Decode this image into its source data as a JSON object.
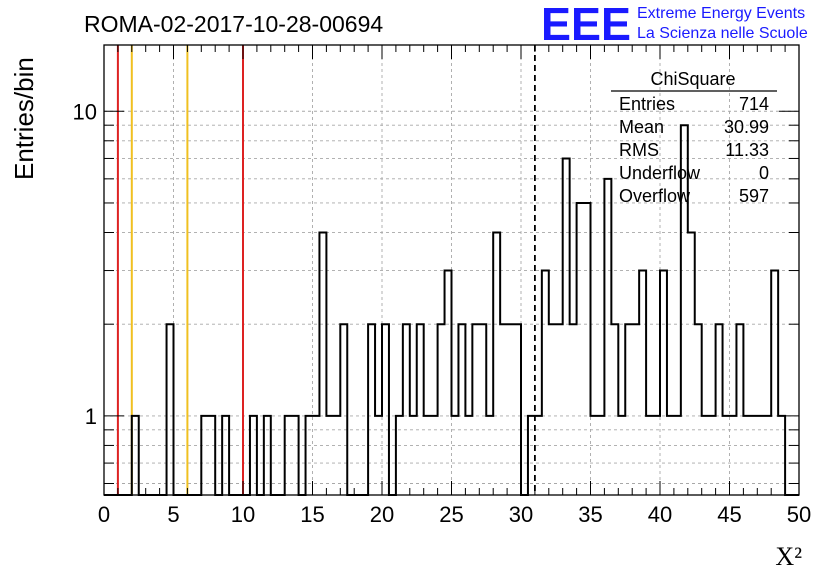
{
  "header": {
    "run_title": "ROMA-02-2017-10-28-00694",
    "logo_text": "EEE",
    "logo_line1": "Extreme Energy Events",
    "logo_line2": "La Scienza nelle Scuole",
    "logo_color": "#1a1aff"
  },
  "stats": {
    "title": "ChiSquare",
    "rows": [
      {
        "label": "Entries",
        "value": "714"
      },
      {
        "label": "Mean",
        "value": "30.99"
      },
      {
        "label": "RMS",
        "value": "11.33"
      },
      {
        "label": "Underflow",
        "value": "0"
      },
      {
        "label": "Overflow",
        "value": "597"
      }
    ]
  },
  "chart_data": {
    "type": "bar",
    "xlabel": "X²",
    "ylabel": "Entries/bin",
    "xlim": [
      0,
      50
    ],
    "ylim": [
      0.55,
      16.5
    ],
    "log_y": true,
    "grid": true,
    "x_ticks": [
      "0",
      "5",
      "10",
      "15",
      "20",
      "25",
      "30",
      "35",
      "40",
      "45",
      "50"
    ],
    "y_ticks": [
      {
        "value": 1,
        "label": "1"
      },
      {
        "value": 10,
        "label": "10"
      }
    ],
    "bin_width": 0.5,
    "bins": [
      [
        2,
        1
      ],
      [
        4.5,
        2
      ],
      [
        7,
        1
      ],
      [
        7.5,
        1
      ],
      [
        8.5,
        1
      ],
      [
        10.5,
        1
      ],
      [
        11.5,
        1
      ],
      [
        13,
        1
      ],
      [
        13.5,
        1
      ],
      [
        14.5,
        1
      ],
      [
        15,
        1
      ],
      [
        15.5,
        4
      ],
      [
        16,
        1
      ],
      [
        16.5,
        1
      ],
      [
        17,
        2
      ],
      [
        19,
        2
      ],
      [
        19.5,
        1
      ],
      [
        20,
        2
      ],
      [
        21,
        1
      ],
      [
        21.5,
        2
      ],
      [
        22,
        1
      ],
      [
        22.5,
        2
      ],
      [
        23,
        1
      ],
      [
        23.5,
        1
      ],
      [
        24,
        2
      ],
      [
        24.5,
        3
      ],
      [
        25,
        1
      ],
      [
        25.5,
        2
      ],
      [
        26,
        1
      ],
      [
        26.5,
        2
      ],
      [
        27,
        2
      ],
      [
        27.5,
        1
      ],
      [
        28,
        4
      ],
      [
        28.5,
        2
      ],
      [
        29,
        2
      ],
      [
        29.5,
        2
      ],
      [
        30.5,
        1
      ],
      [
        31,
        1
      ],
      [
        31.5,
        3
      ],
      [
        32,
        2
      ],
      [
        32.5,
        2
      ],
      [
        33,
        7
      ],
      [
        33.5,
        2
      ],
      [
        34,
        5
      ],
      [
        34.5,
        5
      ],
      [
        35,
        1
      ],
      [
        35.5,
        1
      ],
      [
        36,
        6
      ],
      [
        36.5,
        2
      ],
      [
        37,
        1
      ],
      [
        37.5,
        2
      ],
      [
        38,
        2
      ],
      [
        38.5,
        3
      ],
      [
        39,
        1
      ],
      [
        39.5,
        1
      ],
      [
        40,
        3
      ],
      [
        40.5,
        1
      ],
      [
        41,
        1
      ],
      [
        41.5,
        9
      ],
      [
        42,
        4
      ],
      [
        42.5,
        2
      ],
      [
        43,
        1
      ],
      [
        43.5,
        1
      ],
      [
        44,
        2
      ],
      [
        44.5,
        1
      ],
      [
        45,
        1
      ],
      [
        45.5,
        2
      ],
      [
        46,
        1
      ],
      [
        46.5,
        1
      ],
      [
        47,
        1
      ],
      [
        47.5,
        1
      ],
      [
        48,
        3
      ],
      [
        48.5,
        1
      ]
    ],
    "vertical_lines": [
      {
        "x": 1,
        "color": "#dd2222",
        "style": "solid"
      },
      {
        "x": 2,
        "color": "#f0c020",
        "style": "solid"
      },
      {
        "x": 6,
        "color": "#f0c020",
        "style": "solid"
      },
      {
        "x": 10,
        "color": "#dd2222",
        "style": "solid"
      },
      {
        "x": 31,
        "color": "#000000",
        "style": "dashed"
      }
    ]
  }
}
